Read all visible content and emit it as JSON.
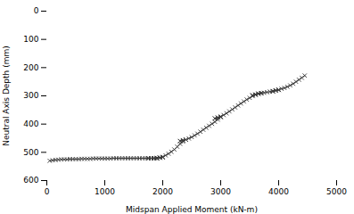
{
  "chart_data": {
    "type": "line",
    "xlabel": "Midspan Applied Moment (kN-m)",
    "ylabel": "Neutral Axis Depth (mm)",
    "x": [
      50,
      100,
      150,
      200,
      250,
      300,
      350,
      400,
      450,
      500,
      550,
      600,
      650,
      700,
      750,
      800,
      850,
      900,
      950,
      1000,
      1050,
      1100,
      1150,
      1200,
      1250,
      1300,
      1350,
      1400,
      1450,
      1500,
      1550,
      1600,
      1650,
      1700,
      1750,
      1800,
      1850,
      1900,
      1900,
      1850,
      1800,
      1750,
      1750,
      1800,
      1850,
      1900,
      1950,
      2000,
      2000,
      1950,
      1900,
      1900,
      1950,
      2000,
      2050,
      2100,
      2150,
      2200,
      2250,
      2300,
      2350,
      2400,
      2400,
      2350,
      2300,
      2300,
      2350,
      2400,
      2450,
      2500,
      2550,
      2600,
      2650,
      2700,
      2750,
      2800,
      2850,
      2900,
      2950,
      3000,
      3000,
      2950,
      2900,
      2900,
      2950,
      3000,
      3050,
      3100,
      3150,
      3200,
      3250,
      3300,
      3350,
      3400,
      3450,
      3500,
      3550,
      3600,
      3650,
      3700,
      3700,
      3650,
      3600,
      3550,
      3550,
      3600,
      3650,
      3700,
      3750,
      3800,
      3850,
      3900,
      3950,
      4000,
      4000,
      3950,
      3900,
      3900,
      3950,
      4000,
      4050,
      4100,
      4150,
      4200,
      4250,
      4300,
      4350,
      4400,
      4450
    ],
    "values": [
      530,
      528,
      527,
      526,
      525,
      525,
      525,
      524,
      524,
      524,
      524,
      523,
      523,
      523,
      523,
      522,
      522,
      522,
      522,
      522,
      522,
      522,
      521,
      521,
      521,
      521,
      521,
      521,
      521,
      521,
      521,
      521,
      521,
      521,
      521,
      521,
      521,
      521,
      521,
      521,
      521,
      521,
      521,
      521,
      521,
      520,
      519,
      518,
      518,
      519,
      520,
      520,
      519,
      516,
      511,
      505,
      498,
      490,
      480,
      470,
      462,
      455,
      455,
      457,
      460,
      460,
      458,
      455,
      451,
      446,
      440,
      434,
      427,
      420,
      413,
      406,
      399,
      392,
      384,
      375,
      375,
      377,
      380,
      380,
      377,
      373,
      368,
      362,
      355,
      348,
      341,
      334,
      327,
      320,
      313,
      307,
      301,
      296,
      292,
      290,
      290,
      292,
      295,
      298,
      298,
      296,
      293,
      291,
      289,
      287,
      285,
      283,
      281,
      279,
      279,
      281,
      284,
      284,
      281,
      278,
      275,
      272,
      268,
      263,
      257,
      250,
      243,
      236,
      228
    ],
    "color": "#3a3a3a",
    "marker": "x",
    "xlim": [
      0,
      5000
    ],
    "ylim": [
      600,
      0
    ],
    "xticks": [
      0,
      1000,
      2000,
      3000,
      4000,
      5000
    ],
    "yticks": [
      0,
      100,
      200,
      300,
      400,
      500,
      600
    ],
    "grid": false
  }
}
